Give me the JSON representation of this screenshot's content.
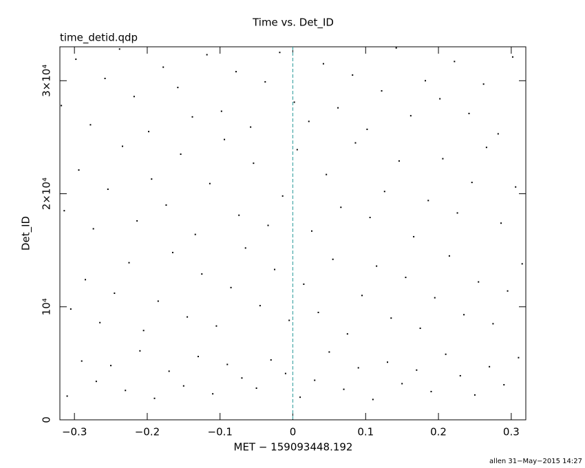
{
  "chart_data": {
    "type": "scatter",
    "title": "Time vs. Det_ID",
    "subtitle": "time_detid.qdp",
    "x_label": "MET − 159093448.192",
    "y_label": "Det_ID",
    "footer": "allen 31−May−2015 14:27",
    "color": "#000000",
    "vline": {
      "x": 0,
      "color": "#2a9a9a"
    },
    "xlim": [
      -0.32,
      0.32
    ],
    "ylim": [
      0,
      33000
    ],
    "xticks": [
      {
        "value": -0.3,
        "label": "−0.3"
      },
      {
        "value": -0.2,
        "label": "−0.2"
      },
      {
        "value": -0.1,
        "label": "−0.1"
      },
      0,
      0.1,
      0.2,
      0.3
    ],
    "yticks": [
      0,
      {
        "value": 10000,
        "label": "10⁴"
      },
      {
        "value": 20000,
        "label": "2×10⁴"
      },
      {
        "value": 30000,
        "label": "3×10⁴"
      }
    ],
    "x": [
      -0.31,
      -0.29,
      -0.27,
      -0.25,
      -0.23,
      -0.21,
      -0.19,
      -0.17,
      -0.15,
      -0.13,
      -0.11,
      -0.09,
      -0.07,
      -0.05,
      -0.03,
      -0.01,
      0.01,
      0.03,
      0.05,
      0.07,
      0.09,
      0.11,
      0.13,
      0.15,
      0.17,
      0.19,
      0.21,
      0.23,
      0.25,
      0.27,
      0.29,
      0.31,
      -0.305,
      -0.285,
      -0.265,
      -0.245,
      -0.225,
      -0.205,
      -0.185,
      -0.165,
      -0.145,
      -0.125,
      -0.105,
      -0.085,
      -0.065,
      -0.045,
      -0.025,
      -0.005,
      0.015,
      0.035,
      0.055,
      0.075,
      0.095,
      0.115,
      0.135,
      0.155,
      0.175,
      0.195,
      0.215,
      0.235,
      0.255,
      0.275,
      0.295,
      0.315,
      -0.314,
      -0.294,
      -0.274,
      -0.254,
      -0.234,
      -0.214,
      -0.194,
      -0.174,
      -0.154,
      -0.134,
      -0.114,
      -0.094,
      -0.074,
      -0.054,
      -0.034,
      -0.014,
      0.006,
      0.026,
      0.046,
      0.066,
      0.086,
      0.106,
      0.126,
      0.146,
      0.166,
      0.186,
      0.206,
      0.226,
      0.246,
      0.266,
      0.286,
      0.306,
      -0.318,
      -0.298,
      -0.278,
      -0.258,
      -0.238,
      -0.218,
      -0.198,
      -0.178,
      -0.158,
      -0.138,
      -0.118,
      -0.098,
      -0.078,
      -0.058,
      -0.038,
      -0.018,
      0.002,
      0.022,
      0.042,
      0.062,
      0.082,
      0.102,
      0.122,
      0.142,
      0.162,
      0.182,
      0.202,
      0.222,
      0.242,
      0.262,
      0.282,
      0.302
    ],
    "values": [
      2100,
      5200,
      3400,
      4800,
      2600,
      6100,
      1900,
      4300,
      3000,
      5600,
      2300,
      4900,
      3700,
      2800,
      5300,
      4100,
      2000,
      3500,
      6000,
      2700,
      4600,
      1800,
      5100,
      3200,
      4400,
      2500,
      5800,
      3900,
      2200,
      4700,
      3100,
      5500,
      9800,
      12400,
      8600,
      11200,
      13900,
      7900,
      10500,
      14800,
      9100,
      12900,
      8300,
      11700,
      15200,
      10100,
      13300,
      8800,
      12000,
      9500,
      14200,
      7600,
      11000,
      13600,
      9000,
      12600,
      8100,
      10800,
      14500,
      9300,
      12200,
      8500,
      11400,
      13800,
      18500,
      22100,
      16900,
      20400,
      24200,
      17600,
      21300,
      19000,
      23500,
      16400,
      20900,
      24800,
      18100,
      22700,
      17200,
      19800,
      23900,
      16700,
      21700,
      18800,
      24500,
      17900,
      20200,
      22900,
      16200,
      19400,
      23100,
      18300,
      21000,
      24100,
      17400,
      20600,
      27800,
      31900,
      26100,
      30200,
      32800,
      28600,
      25500,
      31200,
      29400,
      26800,
      32300,
      27300,
      30800,
      25900,
      29900,
      32500,
      28100,
      26400,
      31500,
      27600,
      30500,
      25700,
      29100,
      32900,
      26900,
      30000,
      28400,
      31700,
      27100,
      29700,
      25300,
      32100
    ]
  }
}
